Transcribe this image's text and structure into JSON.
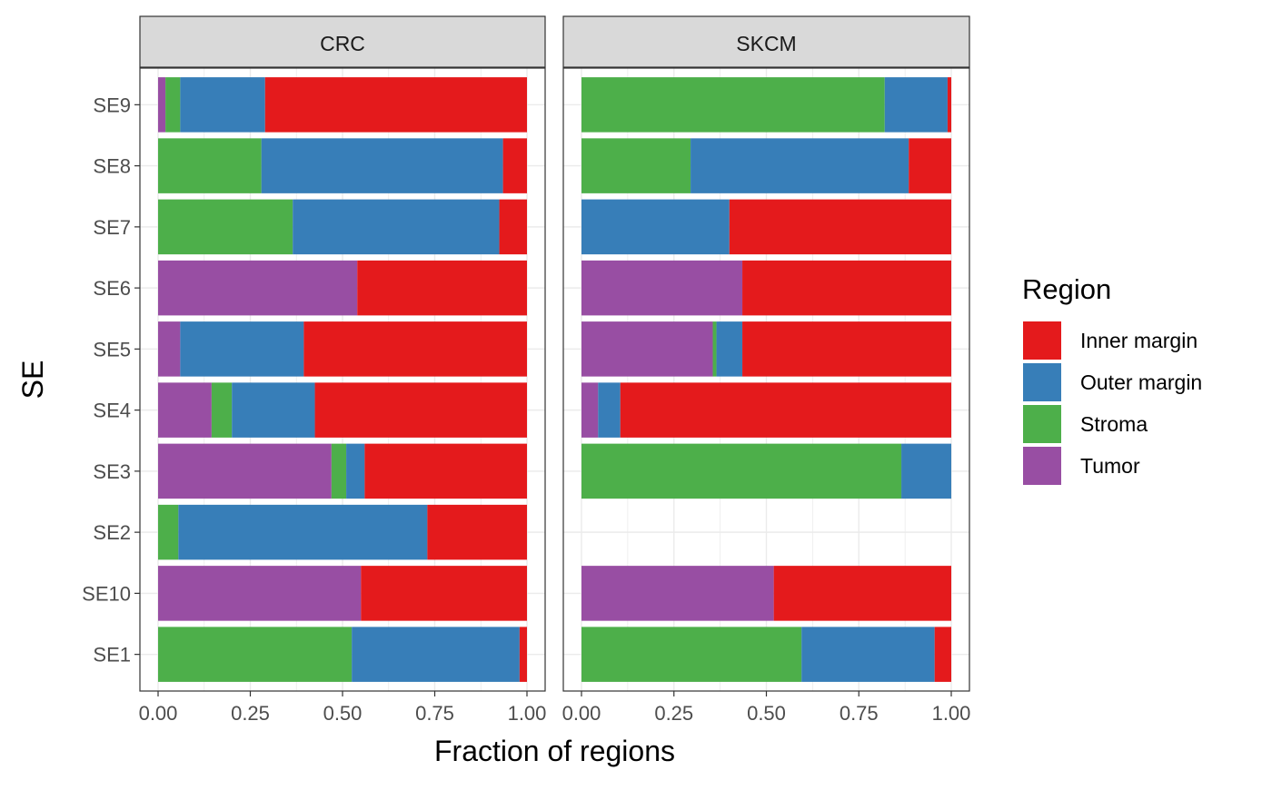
{
  "chart_data": {
    "type": "bar",
    "orientation": "horizontal",
    "stacked": true,
    "facets": [
      "CRC",
      "SKCM"
    ],
    "categories": [
      "SE1",
      "SE10",
      "SE2",
      "SE3",
      "SE4",
      "SE5",
      "SE6",
      "SE7",
      "SE8",
      "SE9"
    ],
    "xlabel": "Fraction of regions",
    "ylabel": "SE",
    "xlim": [
      0,
      1
    ],
    "x_ticks": [
      "0.00",
      "0.25",
      "0.50",
      "0.75",
      "1.00"
    ],
    "grid": true,
    "legend": {
      "title": "Region",
      "position": "right",
      "entries": [
        "Inner margin",
        "Outer margin",
        "Stroma",
        "Tumor"
      ]
    },
    "stack_order": [
      "Tumor",
      "Stroma",
      "Outer margin",
      "Inner margin"
    ],
    "colors": {
      "Inner margin": "#E41A1C",
      "Outer margin": "#377EB8",
      "Stroma": "#4DAF4A",
      "Tumor": "#984EA3"
    },
    "panels": [
      {
        "facet": "CRC",
        "series": [
          {
            "name": "Tumor",
            "values": [
              0.0,
              0.55,
              0.0,
              0.47,
              0.145,
              0.06,
              0.54,
              0.0,
              0.0,
              0.02
            ]
          },
          {
            "name": "Stroma",
            "values": [
              0.525,
              0.0,
              0.055,
              0.04,
              0.055,
              0.0,
              0.0,
              0.365,
              0.28,
              0.04
            ]
          },
          {
            "name": "Outer margin",
            "values": [
              0.455,
              0.0,
              0.675,
              0.05,
              0.225,
              0.335,
              0.0,
              0.56,
              0.655,
              0.23
            ]
          },
          {
            "name": "Inner margin",
            "values": [
              0.02,
              0.45,
              0.27,
              0.44,
              0.575,
              0.605,
              0.46,
              0.075,
              0.065,
              0.71
            ]
          }
        ]
      },
      {
        "facet": "SKCM",
        "series": [
          {
            "name": "Tumor",
            "values": [
              0.0,
              0.52,
              null,
              0.0,
              0.045,
              0.355,
              0.435,
              0.0,
              0.0,
              0.0
            ]
          },
          {
            "name": "Stroma",
            "values": [
              0.595,
              0.0,
              null,
              0.865,
              0.0,
              0.01,
              0.0,
              0.0,
              0.295,
              0.82
            ]
          },
          {
            "name": "Outer margin",
            "values": [
              0.36,
              0.0,
              null,
              0.135,
              0.06,
              0.07,
              0.0,
              0.4,
              0.59,
              0.17
            ]
          },
          {
            "name": "Inner margin",
            "values": [
              0.045,
              0.48,
              null,
              0.0,
              0.895,
              0.565,
              0.565,
              0.6,
              0.115,
              0.01
            ]
          }
        ]
      }
    ]
  }
}
